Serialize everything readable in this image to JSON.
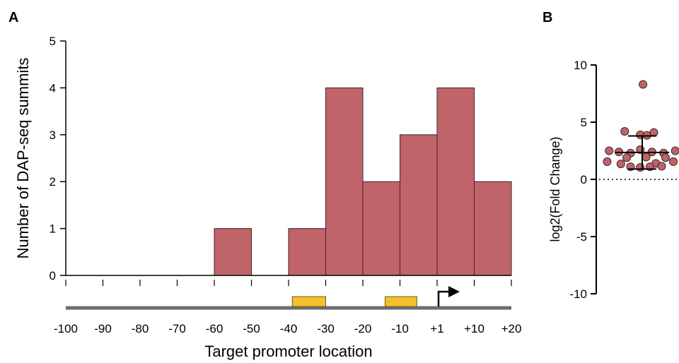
{
  "panels": {
    "a_label": "A",
    "b_label": "B"
  },
  "colors": {
    "bar_fill": "#c0646a",
    "bar_stroke": "#3a2326",
    "promoter_line": "#6e6e6e",
    "box_fill": "#f5c12b",
    "box_stroke": "#6d5a1e",
    "dot_fill": "#c0646a"
  },
  "chart_data": [
    {
      "type": "bar",
      "panel": "A",
      "title": "",
      "xlabel": "Target promoter location",
      "ylabel": "Number of DAP-seq summits",
      "xlim": [
        -100,
        20
      ],
      "ylim": [
        0,
        5
      ],
      "yticks": [
        "0",
        "1",
        "2",
        "3",
        "4",
        "5"
      ],
      "xtick_values": [
        -100,
        -90,
        -80,
        -70,
        -60,
        -50,
        -40,
        -30,
        -20,
        -10,
        1,
        10,
        20
      ],
      "xtick_labels": [
        "-100",
        "-90",
        "-80",
        "-70",
        "-60",
        "-50",
        "-40",
        "-30",
        "-20",
        "-10",
        "+1",
        "+10",
        "+20"
      ],
      "bins": [
        {
          "from": -100,
          "to": -90,
          "value": 0
        },
        {
          "from": -90,
          "to": -80,
          "value": 0
        },
        {
          "from": -80,
          "to": -70,
          "value": 0
        },
        {
          "from": -70,
          "to": -60,
          "value": 0
        },
        {
          "from": -60,
          "to": -50,
          "value": 1
        },
        {
          "from": -50,
          "to": -40,
          "value": 0
        },
        {
          "from": -40,
          "to": -30,
          "value": 1
        },
        {
          "from": -30,
          "to": -20,
          "value": 4
        },
        {
          "from": -20,
          "to": -10,
          "value": 2
        },
        {
          "from": -10,
          "to": 1,
          "value": 3
        },
        {
          "from": 1,
          "to": 10,
          "value": 4
        },
        {
          "from": 10,
          "to": 20,
          "value": 2
        }
      ],
      "promoter_boxes": [
        {
          "from": -39,
          "to": -30
        },
        {
          "from": -14,
          "to": -5
        }
      ],
      "tss_position": 1
    },
    {
      "type": "scatter",
      "panel": "B",
      "title": "",
      "xlabel": "",
      "ylabel": "log2(Fold  Change)",
      "ylim": [
        -10,
        10
      ],
      "yticks": [
        "10",
        "5",
        "0",
        "-5",
        "-10"
      ],
      "reference_line": 0,
      "mean": 2.35,
      "sd_upper": 3.8,
      "sd_lower": 0.9,
      "points": [
        {
          "x": 0.02,
          "y": 8.3
        },
        {
          "x": -0.45,
          "y": 4.2
        },
        {
          "x": 0.3,
          "y": 4.1
        },
        {
          "x": -0.05,
          "y": 3.9
        },
        {
          "x": 0.12,
          "y": 3.85
        },
        {
          "x": -0.85,
          "y": 2.5
        },
        {
          "x": -0.6,
          "y": 2.4
        },
        {
          "x": -0.3,
          "y": 2.3
        },
        {
          "x": -0.05,
          "y": 2.6
        },
        {
          "x": 0.25,
          "y": 2.4
        },
        {
          "x": 0.55,
          "y": 2.3
        },
        {
          "x": 0.85,
          "y": 2.5
        },
        {
          "x": -0.4,
          "y": 1.9
        },
        {
          "x": 0.1,
          "y": 1.95
        },
        {
          "x": 0.6,
          "y": 1.9
        },
        {
          "x": -0.9,
          "y": 1.55
        },
        {
          "x": -0.55,
          "y": 1.35
        },
        {
          "x": 0.35,
          "y": 1.4
        },
        {
          "x": 0.8,
          "y": 1.55
        },
        {
          "x": -0.3,
          "y": 1.1
        },
        {
          "x": -0.05,
          "y": 1.05
        },
        {
          "x": 0.2,
          "y": 1.1
        },
        {
          "x": 0.5,
          "y": 1.15
        }
      ]
    }
  ]
}
